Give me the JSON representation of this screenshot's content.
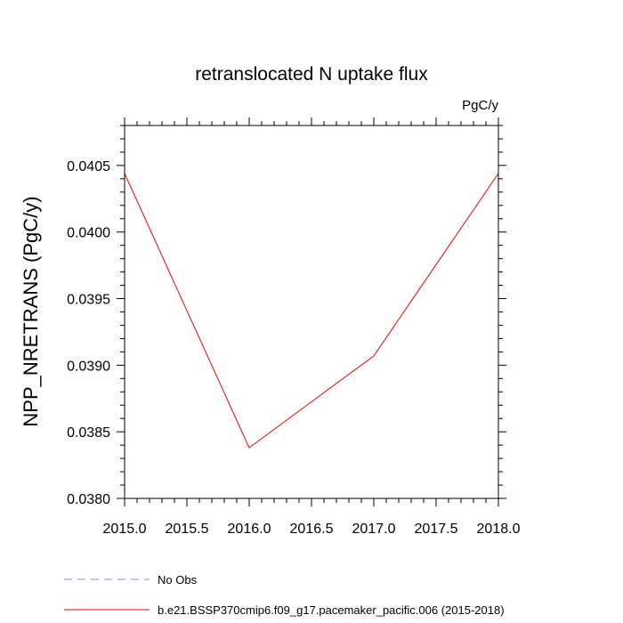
{
  "chart_data": {
    "type": "line",
    "title": "retranslocated N uptake flux",
    "units_label": "PgC/y",
    "ylabel": "NPP_NRETRANS  (PgC/y)",
    "xlabel": "",
    "xlim": [
      2015.0,
      2018.0
    ],
    "ylim": [
      0.038,
      0.0408
    ],
    "x_ticks": [
      2015.0,
      2015.5,
      2016.0,
      2016.5,
      2017.0,
      2017.5,
      2018.0
    ],
    "x_tick_labels": [
      "2015.0",
      "2015.5",
      "2016.0",
      "2016.5",
      "2017.0",
      "2017.5",
      "2018.0"
    ],
    "y_ticks": [
      0.038,
      0.0385,
      0.039,
      0.0395,
      0.04,
      0.0405
    ],
    "y_tick_labels": [
      "0.0380",
      "0.0385",
      "0.0390",
      "0.0395",
      "0.0400",
      "0.0405"
    ],
    "grid": false,
    "legend_position": "bottom",
    "series": [
      {
        "name": "b.e21.BSSP370cmip6.f09_g17.pacemaker_pacific.006 (2015-2018)",
        "color": "#ff0000",
        "style": "solid",
        "x": [
          2015,
          2016,
          2017,
          2018
        ],
        "y": [
          0.04044,
          0.03838,
          0.03907,
          0.04044
        ]
      }
    ],
    "legend": [
      {
        "label": "No Obs",
        "color": "#8888ff",
        "style": "dashed"
      },
      {
        "label": "b.e21.BSSP370cmip6.f09_g17.pacemaker_pacific.006 (2015-2018)",
        "color": "#ff0000",
        "style": "solid"
      }
    ]
  }
}
